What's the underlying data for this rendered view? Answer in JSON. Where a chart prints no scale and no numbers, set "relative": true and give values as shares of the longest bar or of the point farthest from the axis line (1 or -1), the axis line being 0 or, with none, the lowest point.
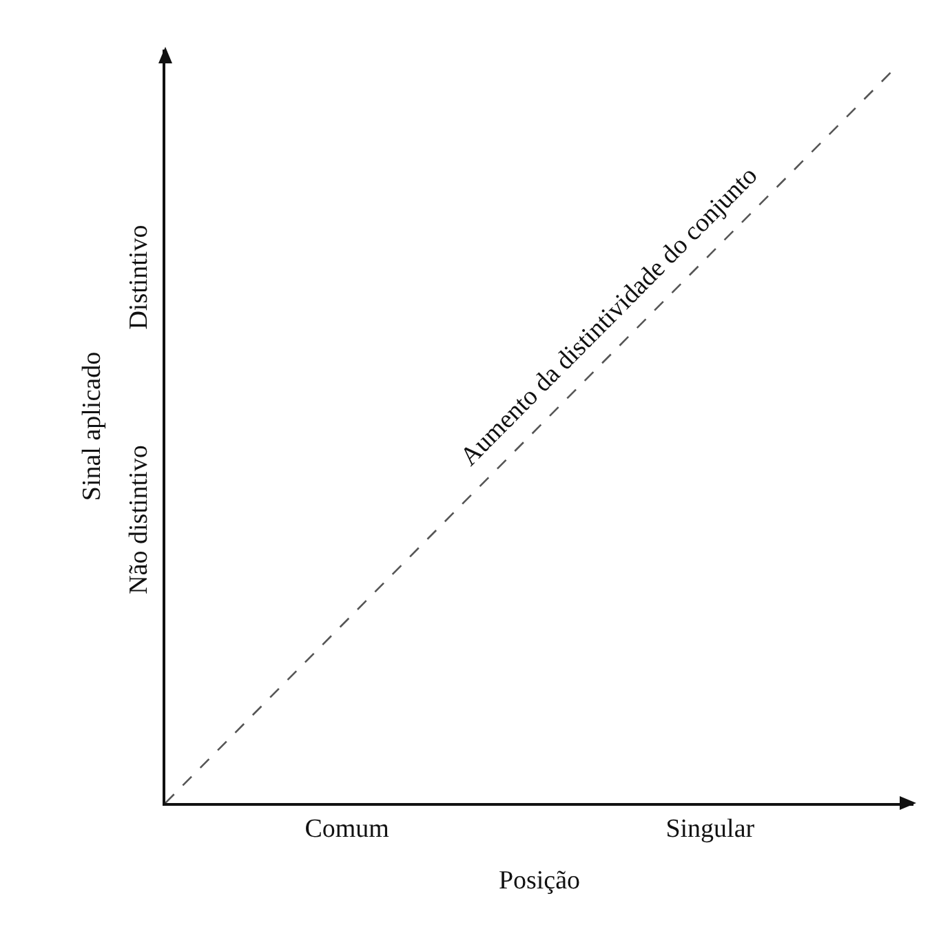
{
  "chart_data": {
    "type": "line",
    "xlabel": "Posição",
    "ylabel": "Sinal aplicado",
    "relative": true,
    "categories": [
      null,
      "Comum",
      null,
      "Singular",
      null
    ],
    "series": [
      {
        "color": "#555555",
        "values": [
          0,
          0.25,
          0.5,
          0.75,
          1
        ],
        "line_style": "dashed"
      }
    ],
    "marker": "none",
    "annotations": [
      "Não distintivo",
      "Distintivo",
      "Aumento da distintividade do conjunto"
    ]
  }
}
